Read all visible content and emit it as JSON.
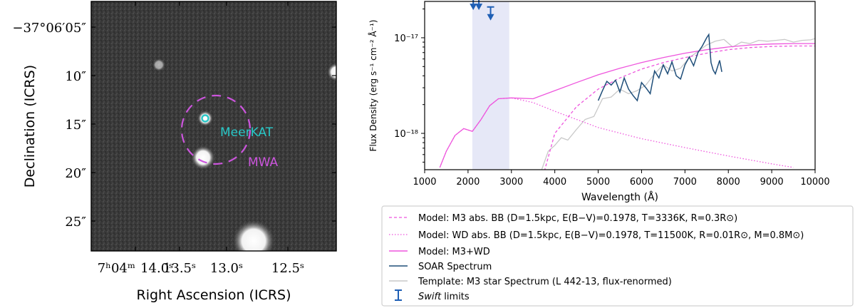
{
  "figure": {
    "image_panel": {
      "ylabel": "Declination (ICRS)",
      "xlabel": "Right Ascension (ICRS)",
      "dec_ticks": [
        "−37°06′05″",
        "10″",
        "15″",
        "20″",
        "25″"
      ],
      "ra_ticks": [
        "7ʰ04ᵐ  14.0ˢ",
        "13.5ˢ",
        "13.0ˢ",
        "12.5ˢ"
      ],
      "labels": {
        "meerkat": "MeerKAT",
        "mwa": "MWA"
      },
      "colors": {
        "meerkat": "#29c7c7",
        "mwa": "#cc55dd"
      }
    },
    "legend": [
      {
        "key": "model_m3",
        "label": "Model: M3 abs. BB (D=1.5kpc, E(B−V)=0.1978, T=3336K, R=0.3R⊙)",
        "color": "#ee55dd",
        "style": "dashed"
      },
      {
        "key": "model_wd",
        "label": "Model: WD abs. BB (D=1.5kpc, E(B−V)=0.1978, T=11500K, R=0.01R⊙, M=0.8M⊙)",
        "color": "#ee55dd",
        "style": "dotted"
      },
      {
        "key": "model_sum",
        "label": "Model: M3+WD",
        "color": "#ee55dd",
        "style": "solid"
      },
      {
        "key": "soar",
        "label": "SOAR Spectrum",
        "color": "#1f4e79",
        "style": "solid"
      },
      {
        "key": "template",
        "label": "Template: M3 star Spectrum (L 442-13, flux-renormed)",
        "color": "#c8c8c8",
        "style": "solid"
      },
      {
        "key": "swift",
        "label_italic": "Swift",
        "label_rest": " limits",
        "color": "#1f5fb5",
        "style": "errorbar"
      }
    ]
  },
  "chart_data": {
    "type": "line",
    "xlabel": "Wavelength (Å)",
    "ylabel": "Flux Density (erg s⁻¹ cm⁻² Å⁻¹)",
    "xlim": [
      1000,
      10000
    ],
    "ylim_log10": [
      -18.38,
      -16.62
    ],
    "x_ticks": [
      1000,
      2000,
      3000,
      4000,
      5000,
      6000,
      7000,
      8000,
      9000,
      10000
    ],
    "y_ticks": [
      {
        "value": 1e-18,
        "label": "10⁻¹⁸"
      },
      {
        "value": 1e-17,
        "label": "10⁻¹⁷"
      }
    ],
    "shaded_band": {
      "x": [
        2100,
        2950
      ],
      "color": "#e6e8f7"
    },
    "series": [
      {
        "name": "Model: M3 abs. BB",
        "style": "dashed",
        "x": [
          3700,
          4000,
          4500,
          5000,
          5500,
          6000,
          6500,
          7000,
          7500,
          8000,
          8500,
          9000,
          9500,
          10000
        ],
        "y": [
          3.2e-19,
          1e-18,
          1.9e-18,
          2.9e-18,
          3.8e-18,
          4.7e-18,
          5.5e-18,
          6.2e-18,
          6.9e-18,
          7.5e-18,
          7.9e-18,
          8.1e-18,
          8.2e-18,
          8.2e-18
        ]
      },
      {
        "name": "Model: WD abs. BB",
        "style": "dotted",
        "x": [
          1350,
          1500,
          1700,
          1900,
          2100,
          2300,
          2500,
          2700,
          3000,
          3500,
          4000,
          5000,
          6000,
          7000,
          8000,
          9000,
          9500
        ],
        "y": [
          4.4e-19,
          6.5e-19,
          9.5e-19,
          1.12e-18,
          1.05e-18,
          1.4e-18,
          1.95e-18,
          2.3e-18,
          2.35e-18,
          2.1e-18,
          1.7e-18,
          1.15e-18,
          8.8e-19,
          7.1e-19,
          5.8e-19,
          4.8e-19,
          4.4e-19
        ]
      },
      {
        "name": "Model: M3+WD",
        "style": "solid",
        "x": [
          1350,
          1500,
          1700,
          1900,
          2100,
          2300,
          2500,
          2700,
          3000,
          3500,
          4000,
          4500,
          5000,
          5500,
          6000,
          6500,
          7000,
          7500,
          8000,
          8500,
          9000,
          9500,
          10000
        ],
        "y": [
          4.4e-19,
          6.5e-19,
          9.5e-19,
          1.12e-18,
          1.05e-18,
          1.4e-18,
          1.95e-18,
          2.3e-18,
          2.35e-18,
          2.3e-18,
          2.8e-18,
          3.4e-18,
          4.1e-18,
          4.8e-18,
          5.5e-18,
          6.2e-18,
          6.9e-18,
          7.5e-18,
          8e-18,
          8.4e-18,
          8.6e-18,
          8.7e-18,
          8.7e-18
        ]
      },
      {
        "name": "SOAR Spectrum",
        "style": "solid",
        "x": [
          5000,
          5100,
          5200,
          5300,
          5400,
          5500,
          5600,
          5700,
          5800,
          5900,
          6000,
          6100,
          6200,
          6300,
          6400,
          6500,
          6600,
          6700,
          6800,
          6900,
          7000,
          7100,
          7200,
          7300,
          7400,
          7500,
          7550,
          7600,
          7650,
          7700,
          7800,
          7850
        ],
        "y": [
          2.2e-18,
          2.8e-18,
          3.5e-18,
          3.2e-18,
          3.6e-18,
          2.7e-18,
          3.8e-18,
          2.9e-18,
          2.5e-18,
          2.2e-18,
          3.4e-18,
          3e-18,
          2.6e-18,
          4.5e-18,
          3.8e-18,
          5.2e-18,
          4.2e-18,
          5.6e-18,
          4e-18,
          3.7e-18,
          5.2e-18,
          6.3e-18,
          5.1e-18,
          7e-18,
          8.2e-18,
          1e-17,
          1.08e-17,
          5.5e-18,
          4.6e-18,
          4.2e-18,
          5.8e-18,
          4.4e-18
        ]
      },
      {
        "name": "Template: M3 star Spectrum",
        "style": "solid",
        "x": [
          3700,
          3850,
          4000,
          4150,
          4300,
          4500,
          4700,
          4900,
          5100,
          5300,
          5500,
          5700,
          5900,
          6100,
          6300,
          6500,
          6700,
          6900,
          7100,
          7300,
          7500,
          7700,
          7900,
          8100,
          8300,
          8500,
          8700,
          8900,
          9100,
          9300,
          9500,
          9700,
          9900,
          10000
        ],
        "y": [
          4.2e-19,
          6.5e-19,
          7.5e-19,
          9e-19,
          8.5e-19,
          1.1e-18,
          1.4e-18,
          1.5e-18,
          2.3e-18,
          2.4e-18,
          2.9e-18,
          2.6e-18,
          2.8e-18,
          3.2e-18,
          4.2e-18,
          5.2e-18,
          4.5e-18,
          4.8e-18,
          6.2e-18,
          7.2e-18,
          8.4e-18,
          9.2e-18,
          9.6e-18,
          8e-18,
          9e-18,
          8.7e-18,
          9.4e-18,
          9.2e-18,
          9.4e-18,
          9.6e-18,
          9e-18,
          9.4e-18,
          9.5e-18,
          9.8e-18
        ]
      },
      {
        "name": "Swift limits",
        "style": "upper-limits",
        "x": [
          2120,
          2250,
          2520
        ],
        "y": [
          2.7e-17,
          2.7e-17,
          2.1e-17
        ]
      }
    ]
  }
}
